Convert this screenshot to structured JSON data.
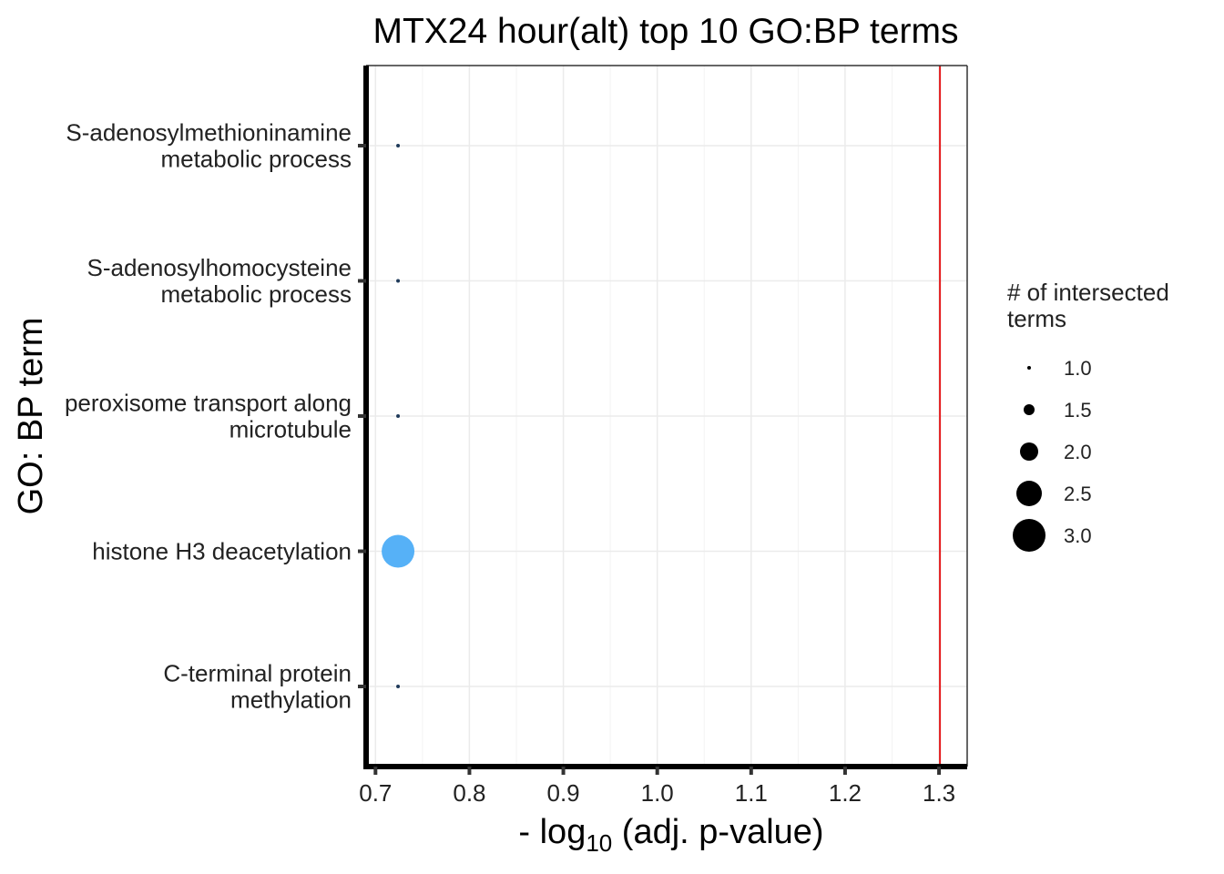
{
  "chart_data": {
    "type": "scatter",
    "title": "MTX24 hour(alt) top 10 GO:BP terms",
    "xlabel": "- log10 (adj. p-value)",
    "xlabel_parts": {
      "prefix": "- log",
      "subscript": "10",
      "suffix": " (adj. p-value)"
    },
    "ylabel": "GO: BP term",
    "xlim": [
      0.69,
      1.33
    ],
    "x_ticks": [
      "0.7",
      "0.8",
      "0.9",
      "1.0",
      "1.1",
      "1.2",
      "1.3"
    ],
    "x_tick_values": [
      0.7,
      0.8,
      0.9,
      1.0,
      1.1,
      1.2,
      1.3
    ],
    "categories": [
      [
        "S-adenosylmethioninamine",
        "metabolic process"
      ],
      [
        "S-adenosylhomocysteine",
        "metabolic process"
      ],
      [
        "peroxisome transport along",
        "microtubule"
      ],
      [
        "histone H3 deacetylation"
      ],
      [
        "C-terminal protein",
        "methylation"
      ]
    ],
    "points": [
      {
        "x": 0.724,
        "size": 1,
        "color": "#1f3a5a"
      },
      {
        "x": 0.724,
        "size": 1,
        "color": "#1f3a5a"
      },
      {
        "x": 0.724,
        "size": 1,
        "color": "#1f3a5a"
      },
      {
        "x": 0.724,
        "size": 3,
        "color": "#56b1f7"
      },
      {
        "x": 0.724,
        "size": 1,
        "color": "#1f3a5a"
      }
    ],
    "threshold_line": {
      "x": 1.301,
      "color": "#e41a1c"
    },
    "legend": {
      "title": [
        "# of intersected",
        " terms"
      ],
      "items": [
        {
          "label": "1.0",
          "size": 1.0
        },
        {
          "label": "1.5",
          "size": 1.5
        },
        {
          "label": "2.0",
          "size": 2.0
        },
        {
          "label": "2.5",
          "size": 2.5
        },
        {
          "label": "3.0",
          "size": 3.0
        }
      ],
      "placement": "right"
    },
    "grid": true
  }
}
